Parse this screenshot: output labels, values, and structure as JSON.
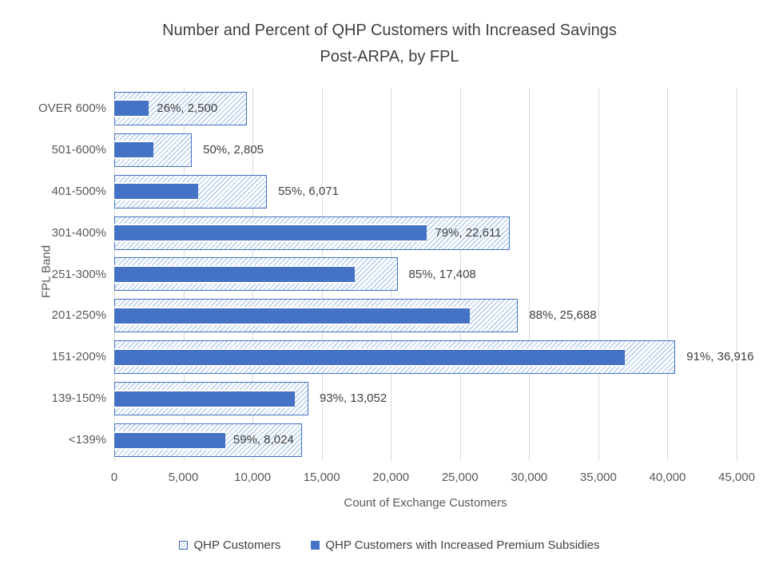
{
  "title": {
    "line1": "Number and Percent of QHP Customers with Increased Savings",
    "line2": "Post-ARPA, by FPL"
  },
  "x_axis": {
    "title": "Count of Exchange Customers",
    "ticks": [
      {
        "value": 0,
        "label": "0"
      },
      {
        "value": 5000,
        "label": "5,000"
      },
      {
        "value": 10000,
        "label": "10,000"
      },
      {
        "value": 15000,
        "label": "15,000"
      },
      {
        "value": 20000,
        "label": "20,000"
      },
      {
        "value": 25000,
        "label": "25,000"
      },
      {
        "value": 30000,
        "label": "30,000"
      },
      {
        "value": 35000,
        "label": "35,000"
      },
      {
        "value": 40000,
        "label": "40,000"
      },
      {
        "value": 45000,
        "label": "45,000"
      }
    ]
  },
  "y_axis": {
    "title": "FPL Band"
  },
  "legend": {
    "items": [
      {
        "label": "QHP Customers",
        "style": "hatched"
      },
      {
        "label": "QHP Customers with Increased Premium Subsidies",
        "style": "solid"
      }
    ]
  },
  "colors": {
    "solid_bar": "#4472C4",
    "hatch_line": "#B4CCE8",
    "hatch_background": "#FCFDFF",
    "hatch_border": "#4472C4",
    "gridline": "#D9D9D9",
    "title_text": "#3F3F3F",
    "axis_text": "#595959",
    "label_text": "#404040"
  },
  "chart_data": {
    "type": "bar",
    "orientation": "horizontal",
    "title": "Number and Percent of QHP Customers with Increased Savings Post-ARPA, by FPL",
    "xlabel": "Count of Exchange Customers",
    "ylabel": "FPL Band",
    "xlim": [
      0,
      45000
    ],
    "grid": "vertical-only",
    "legend_position": "bottom",
    "categories": [
      "OVER 600%",
      "501-600%",
      "401-500%",
      "301-400%",
      "251-300%",
      "201-250%",
      "151-200%",
      "139-150%",
      "<139%"
    ],
    "series": [
      {
        "name": "QHP Customers",
        "fill": "hatched",
        "values": [
          9615,
          5610,
          11038,
          28622,
          20480,
          29191,
          40567,
          14034,
          13600
        ],
        "note": "estimated from bar lengths against gridlines"
      },
      {
        "name": "QHP Customers with Increased Premium Subsidies",
        "fill": "solid",
        "values": [
          2500,
          2805,
          6071,
          22611,
          17408,
          25688,
          36916,
          13052,
          8024
        ],
        "percent_of_total": [
          26,
          50,
          55,
          79,
          85,
          88,
          91,
          93,
          59
        ]
      }
    ],
    "data_labels": [
      {
        "text": "26%, 2,500",
        "placement": "inside"
      },
      {
        "text": "50%, 2,805",
        "placement": "outside"
      },
      {
        "text": "55%, 6,071",
        "placement": "outside"
      },
      {
        "text": "79%, 22,611",
        "placement": "inside"
      },
      {
        "text": "85%, 17,408",
        "placement": "outside"
      },
      {
        "text": "88%, 25,688",
        "placement": "outside"
      },
      {
        "text": "91%, 36,916",
        "placement": "outside"
      },
      {
        "text": "93%, 13,052",
        "placement": "outside"
      },
      {
        "text": "59%, 8,024",
        "placement": "inside"
      }
    ]
  }
}
